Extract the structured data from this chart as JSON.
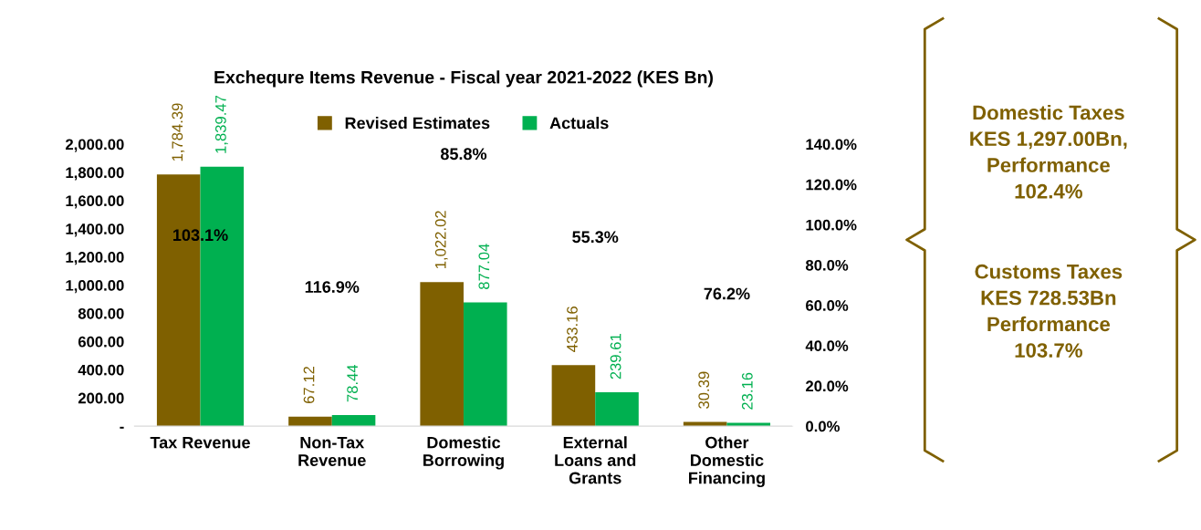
{
  "chart_data": {
    "type": "bar",
    "title": "Exchequre Items Revenue - Fiscal year 2021-2022 (KES Bn)",
    "categories": [
      "Tax Revenue",
      "Non-Tax\nRevenue",
      "Domestic\nBorrowing",
      "External\nLoans and\nGrants",
      "Other\nDomestic\nFinancing"
    ],
    "series": [
      {
        "name": "Revised Estimates",
        "color": "#7f6000",
        "values": [
          1784.39,
          67.12,
          1022.02,
          433.16,
          30.39
        ],
        "value_labels": [
          "1,784.39",
          "67.12",
          "1,022.02",
          "433.16",
          "30.39"
        ]
      },
      {
        "name": "Actuals",
        "color": "#00b050",
        "values": [
          1839.47,
          78.44,
          877.04,
          239.61,
          23.16
        ],
        "value_labels": [
          "1,839.47",
          "78.44",
          "877.04",
          "239.61",
          "23.16"
        ]
      }
    ],
    "ylim": [
      0,
      2000
    ],
    "yticks": [
      {
        "value": 0,
        "label": "-"
      },
      {
        "value": 200,
        "label": "200.00"
      },
      {
        "value": 400,
        "label": "400.00"
      },
      {
        "value": 600,
        "label": "600.00"
      },
      {
        "value": 800,
        "label": "800.00"
      },
      {
        "value": 1000,
        "label": "1,000.00"
      },
      {
        "value": 1200,
        "label": "1,200.00"
      },
      {
        "value": 1400,
        "label": "1,400.00"
      },
      {
        "value": 1600,
        "label": "1,600.00"
      },
      {
        "value": 1800,
        "label": "1,800.00"
      },
      {
        "value": 2000,
        "label": "2,000.00"
      }
    ],
    "y2lim": [
      0,
      140
    ],
    "y2ticks": [
      {
        "value": 0,
        "label": "0.0%"
      },
      {
        "value": 20,
        "label": "20.0%"
      },
      {
        "value": 40,
        "label": "40.0%"
      },
      {
        "value": 60,
        "label": "60.0%"
      },
      {
        "value": 80,
        "label": "80.0%"
      },
      {
        "value": 100,
        "label": "100.0%"
      },
      {
        "value": 120,
        "label": "120.0%"
      },
      {
        "value": 140,
        "label": "140.0%"
      }
    ],
    "annotations": [
      "103.1%",
      "116.9%",
      "85.8%",
      "55.3%",
      "76.2%",
      "Domestic Taxes\nKES 1,297.00Bn,\nPerformance\n102.4%",
      "Customs Taxes\nKES 728.53Bn\nPerformance\n103.7%"
    ],
    "legend": "top",
    "grid": false
  }
}
